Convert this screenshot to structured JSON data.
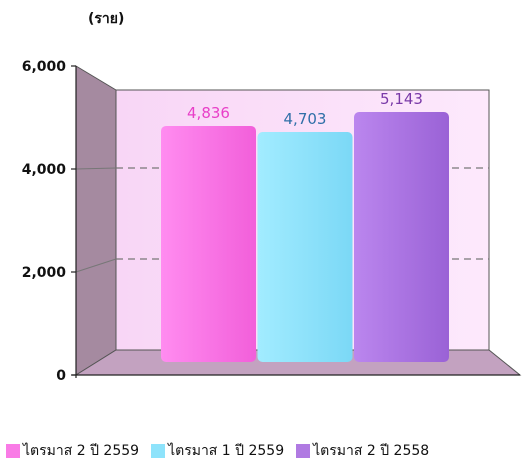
{
  "chart_data": {
    "type": "bar",
    "unit_label": "(ราย)",
    "categories": [
      "ไตรมาส 2 ปี 2559",
      "ไตรมาส 1 ปี 2559",
      "ไตรมาส 2 ปี 2558"
    ],
    "values": [
      4836,
      4703,
      5143
    ],
    "value_labels": [
      "4,836",
      "4,703",
      "5,143"
    ],
    "value_label_colors": [
      "#e83fc8",
      "#2f6fa8",
      "#7a3aa8"
    ],
    "colors": [
      "#f97be6",
      "#8ee3fb",
      "#b07ae2"
    ],
    "yticks": [
      {
        "value": 0,
        "label": "0"
      },
      {
        "value": 2000,
        "label": "2,000"
      },
      {
        "value": 4000,
        "label": "4,000"
      },
      {
        "value": 6000,
        "label": "6,000"
      }
    ],
    "ylim": [
      0,
      6000
    ],
    "grid": true,
    "legend_position": "bottom"
  }
}
